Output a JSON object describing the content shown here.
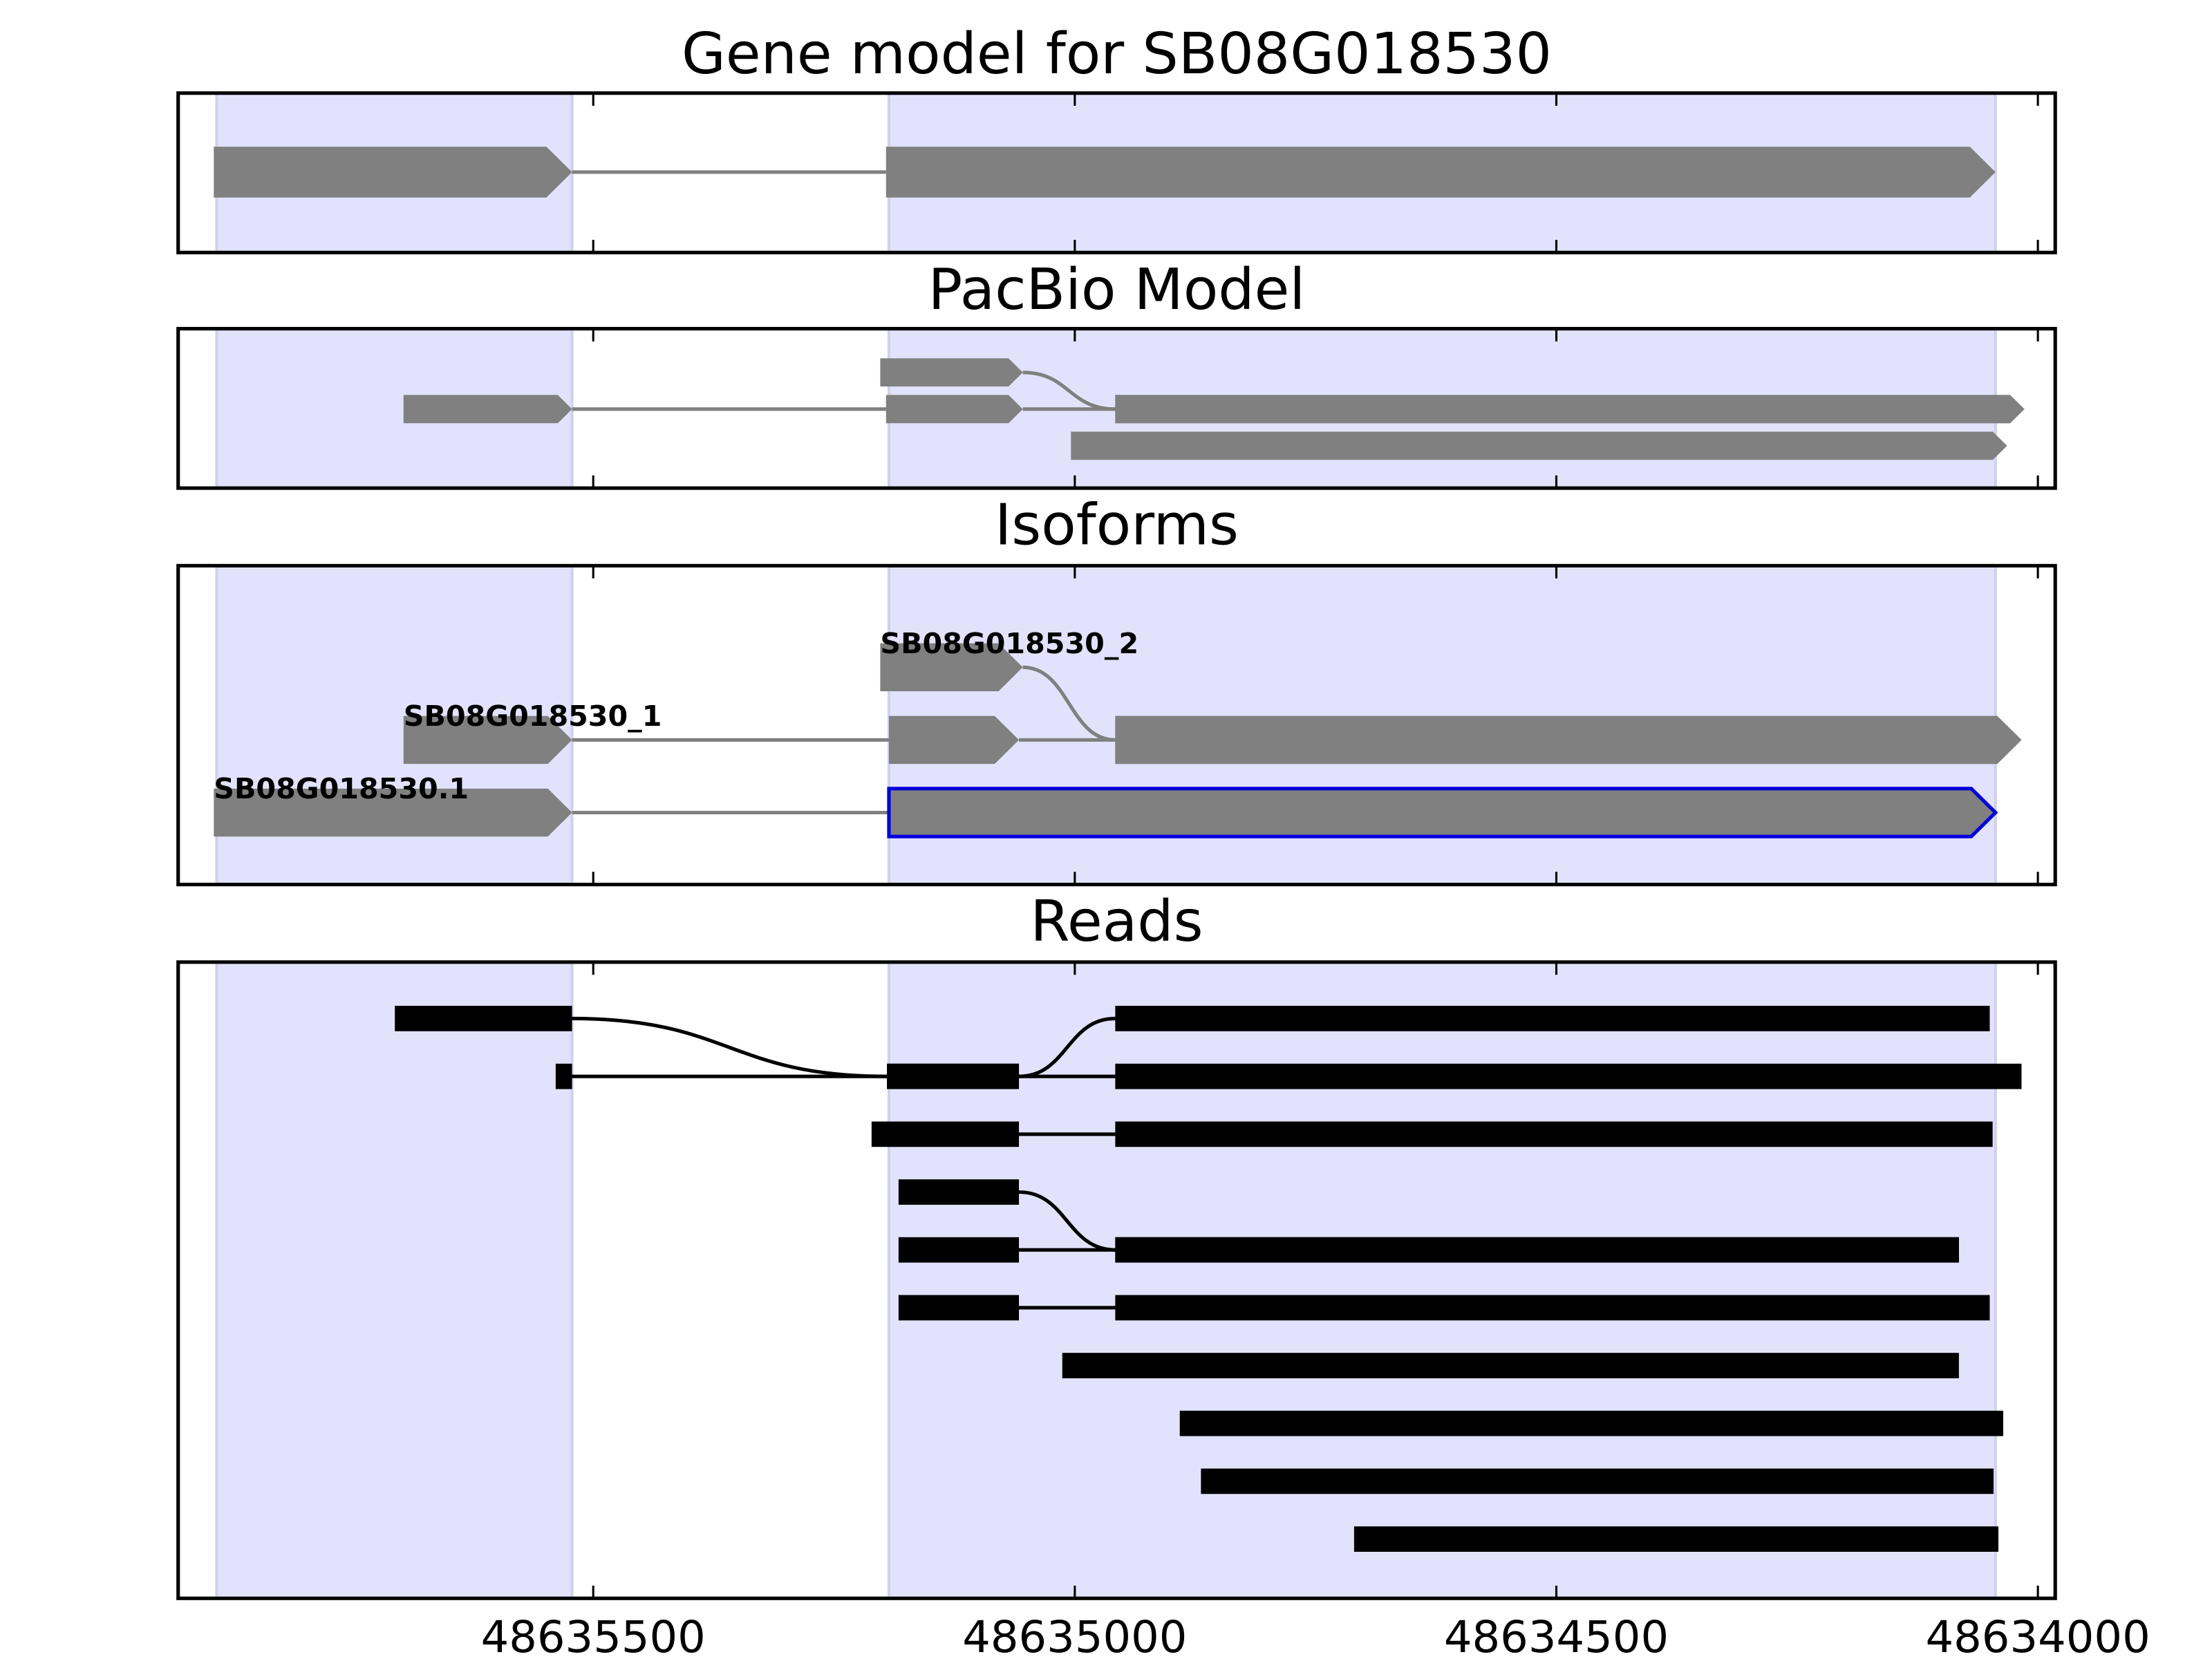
{
  "chart_data": [
    {
      "type": "gene-track",
      "title": "Gene model for SB08G018530",
      "style": "arrow",
      "color": "#808080",
      "xlim": [
        48635931,
        48633982
      ],
      "xticks": [
        48635500,
        48635000,
        48634500,
        48634000
      ],
      "shaded": [
        [
          48635891,
          48635522
        ],
        [
          48635193,
          48634044
        ]
      ],
      "shade_color": "#e2e2fc",
      "transcripts": [
        {
          "exons": [
            [
              48635894,
              48635522
            ],
            [
              48635196,
              48634044
            ]
          ]
        }
      ]
    },
    {
      "type": "gene-track",
      "title": "PacBio Model",
      "style": "arrow",
      "color": "#808080",
      "xlim": [
        48635931,
        48633982
      ],
      "xticks": [
        48635500,
        48635000,
        48634500,
        48634000
      ],
      "shaded": [
        [
          48635891,
          48635522
        ],
        [
          48635193,
          48634044
        ]
      ],
      "shade_color": "#e2e2fc",
      "transcripts": [
        {
          "exons": [
            [
              48635202,
              48635054
            ],
            [
              48634958,
              48634014
            ]
          ]
        },
        {
          "exons": [
            [
              48635697,
              48635522
            ],
            [
              48635196,
              48635054
            ],
            [
              48634958,
              48634014
            ]
          ]
        },
        {
          "exons": [
            [
              48635004,
              48634032
            ]
          ]
        }
      ]
    },
    {
      "type": "gene-track",
      "title": "Isoforms",
      "style": "arrow",
      "color": "#808080",
      "xlim": [
        48635931,
        48633982
      ],
      "xticks": [
        48635500,
        48635000,
        48634500,
        48634000
      ],
      "shaded": [
        [
          48635891,
          48635522
        ],
        [
          48635193,
          48634044
        ]
      ],
      "shade_color": "#e2e2fc",
      "highlight": {
        "transcript": 2,
        "exon": 1,
        "color": "#0000dd"
      },
      "transcripts": [
        {
          "name": "SB08G018530_2",
          "exons": [
            [
              48635202,
              48635054
            ],
            [
              48634958,
              48634017
            ]
          ]
        },
        {
          "name": "SB08G018530_1",
          "exons": [
            [
              48635697,
              48635522
            ],
            [
              48635193,
              48635058
            ],
            [
              48634958,
              48634017
            ]
          ]
        },
        {
          "name": "SB08G018530.1",
          "exons": [
            [
              48635894,
              48635522
            ],
            [
              48635193,
              48634044
            ]
          ]
        }
      ]
    },
    {
      "type": "gene-track",
      "title": "Reads",
      "style": "block",
      "color": "#000000",
      "tick_labels": true,
      "xlim": [
        48635931,
        48633982
      ],
      "xticks": [
        48635500,
        48635000,
        48634500,
        48634000
      ],
      "shaded": [
        [
          48635891,
          48635522
        ],
        [
          48635193,
          48634044
        ]
      ],
      "shade_color": "#e2e2fc",
      "transcripts": [
        {
          "exons": [
            [
              48635706,
              48635522
            ],
            [
              48635195,
              48635058
            ],
            [
              48634958,
              48634050
            ]
          ]
        },
        {
          "exons": [
            [
              48635539,
              48635522
            ],
            [
              48635195,
              48635058
            ],
            [
              48634958,
              48634017
            ]
          ]
        },
        {
          "exons": [
            [
              48635211,
              48635058
            ],
            [
              48634958,
              48634047
            ]
          ]
        },
        {
          "exons": [
            [
              48635183,
              48635058
            ],
            [
              48634958,
              48634082
            ]
          ]
        },
        {
          "exons": [
            [
              48635183,
              48635058
            ],
            [
              48634958,
              48634082
            ]
          ]
        },
        {
          "exons": [
            [
              48635183,
              48635058
            ],
            [
              48634958,
              48634050
            ]
          ]
        },
        {
          "exons": [
            [
              48635013,
              48634082
            ]
          ]
        },
        {
          "exons": [
            [
              48634891,
              48634036
            ]
          ]
        },
        {
          "exons": [
            [
              48634869,
              48634046
            ]
          ]
        },
        {
          "exons": [
            [
              48634710,
              48634041
            ]
          ]
        }
      ]
    }
  ]
}
